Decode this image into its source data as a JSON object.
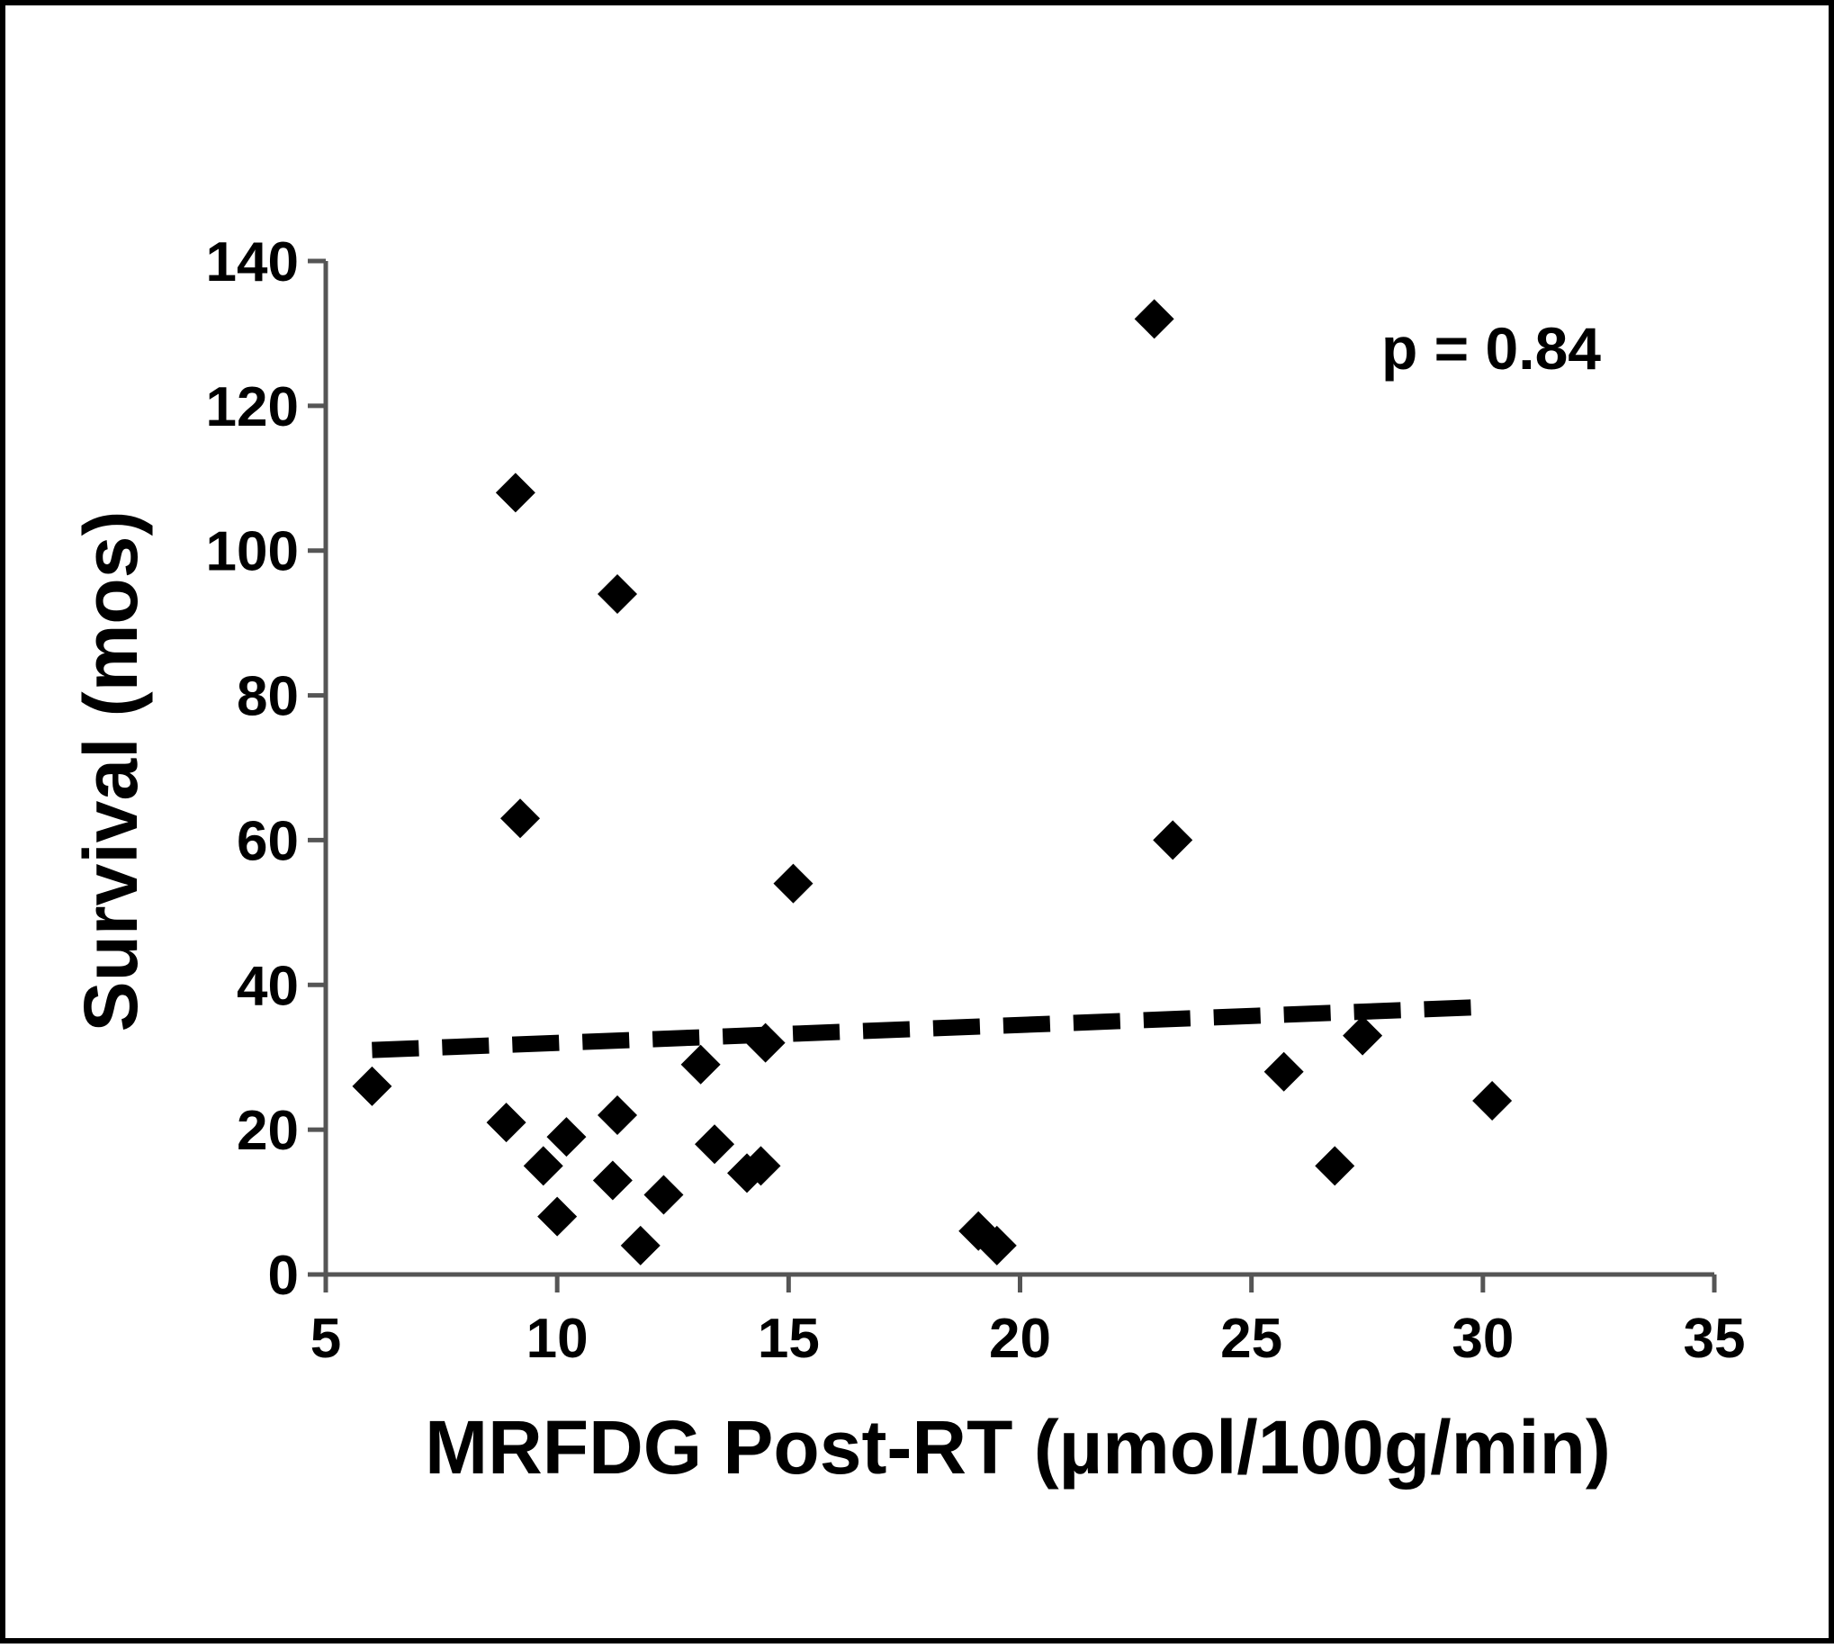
{
  "chart_data": {
    "type": "scatter",
    "xlabel": "MRFDG Post-RT (µmol/100g/min)",
    "ylabel": "Survival (mos)",
    "xlim": [
      5,
      35
    ],
    "ylim": [
      0,
      140
    ],
    "x_ticks": [
      "5",
      "10",
      "15",
      "20",
      "25",
      "30",
      "35"
    ],
    "y_ticks": [
      "0",
      "20",
      "40",
      "60",
      "80",
      "100",
      "120",
      "140"
    ],
    "grid": false,
    "legend": "none",
    "annotation": "p = 0.84",
    "marker": "diamond",
    "marker_color": "#000000",
    "trendline": {
      "style": "dashed",
      "x": [
        6,
        30.2
      ],
      "y": [
        31,
        37
      ]
    },
    "points": [
      {
        "x": 6,
        "y": 26
      },
      {
        "x": 8.9,
        "y": 21
      },
      {
        "x": 9.1,
        "y": 108
      },
      {
        "x": 9.2,
        "y": 63
      },
      {
        "x": 9.7,
        "y": 15
      },
      {
        "x": 10.0,
        "y": 8
      },
      {
        "x": 10.2,
        "y": 19
      },
      {
        "x": 11.2,
        "y": 13
      },
      {
        "x": 11.3,
        "y": 22
      },
      {
        "x": 11.3,
        "y": 94
      },
      {
        "x": 11.8,
        "y": 4
      },
      {
        "x": 12.3,
        "y": 11
      },
      {
        "x": 13.1,
        "y": 29
      },
      {
        "x": 13.4,
        "y": 18
      },
      {
        "x": 14.1,
        "y": 14
      },
      {
        "x": 14.4,
        "y": 15
      },
      {
        "x": 14.5,
        "y": 32
      },
      {
        "x": 15.1,
        "y": 54
      },
      {
        "x": 19.1,
        "y": 6
      },
      {
        "x": 19.5,
        "y": 4
      },
      {
        "x": 22.9,
        "y": 132
      },
      {
        "x": 23.3,
        "y": 60
      },
      {
        "x": 25.7,
        "y": 28
      },
      {
        "x": 26.8,
        "y": 15
      },
      {
        "x": 27.4,
        "y": 33
      },
      {
        "x": 30.2,
        "y": 24
      }
    ]
  }
}
